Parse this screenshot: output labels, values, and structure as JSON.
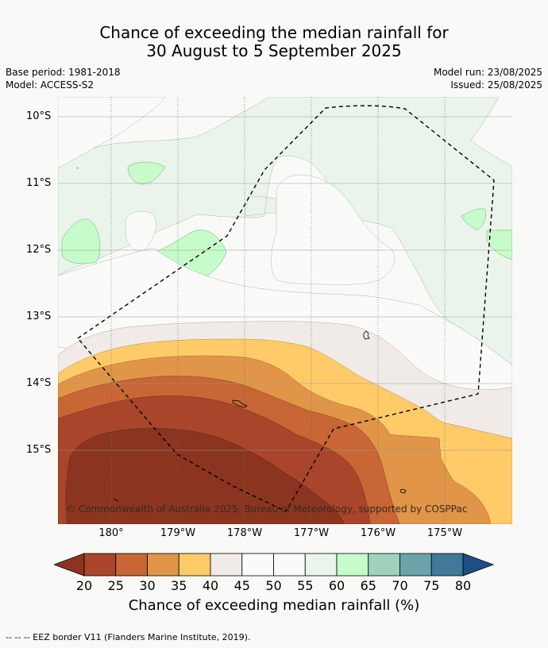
{
  "title_line1": "Chance of exceeding the median rainfall for",
  "title_line2": "30 August to 5 September 2025",
  "base_period": "Base period: 1981-2018",
  "model": "Model: ACCESS-S2",
  "model_run": "Model run: 23/08/2025",
  "issued": "Issued: 25/08/2025",
  "copyright": "© Commonwealth of Australia 2025, Bureau of Meteorology, supported by COSPPac",
  "lat_labels": [
    "10°S",
    "11°S",
    "12°S",
    "13°S",
    "14°S",
    "15°S"
  ],
  "lon_labels": [
    "180°",
    "179°W",
    "178°W",
    "177°W",
    "176°W",
    "175°W"
  ],
  "colorbar": {
    "ticks": [
      "20",
      "25",
      "30",
      "35",
      "40",
      "45",
      "50",
      "55",
      "60",
      "65",
      "70",
      "75",
      "80"
    ],
    "label": "Chance of exceeding median rainfall (%)",
    "colors": {
      "lt20": "#8b3520",
      "c20_25": "#a8452a",
      "c25_30": "#c86635",
      "c30_35": "#e19548",
      "c35_40": "#fecb68",
      "c40_45": "#f0ebe6",
      "c45_50": "#fafbf9",
      "c50_55": "#fafbf9",
      "c55_60": "#eaf4ea",
      "c60_65": "#c6fcc9",
      "c65_70": "#9fd2bc",
      "c70_75": "#6ba3aa",
      "c75_80": "#417a99",
      "gt80": "#1f4e87"
    }
  },
  "footnote": "--  --  -- EEZ border V11 (Flanders Marine Institute, 2019)."
}
